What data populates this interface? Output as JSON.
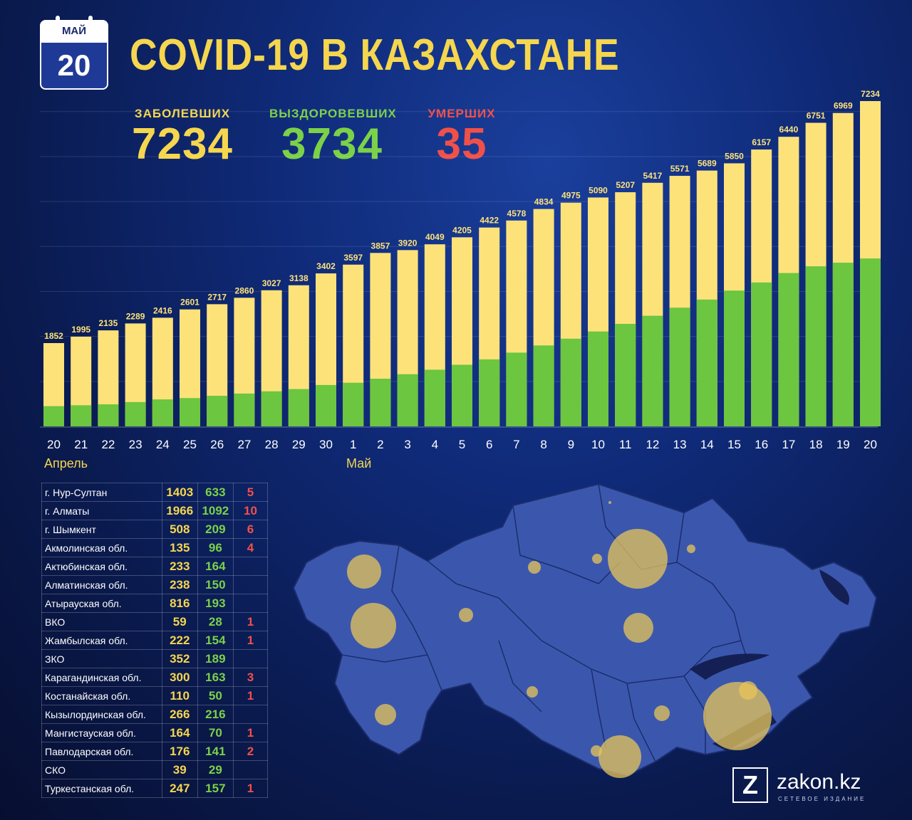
{
  "header": {
    "calendar_month": "МАЙ",
    "calendar_day": "20",
    "title": "COVID-19 В КАЗАХСТАНЕ"
  },
  "totals": {
    "cases_label": "ЗАБОЛЕВШИХ",
    "cases_value": "7234",
    "recovered_label": "ВЫЗДОРОВЕВШИХ",
    "recovered_value": "3734",
    "deaths_label": "УМЕРШИХ",
    "deaths_value": "35"
  },
  "colors": {
    "cases": "#f5d64e",
    "recovered": "#7bd148",
    "deaths": "#f0504a",
    "bar": "#fde27a",
    "bar_green": "#6cc63f"
  },
  "chart_data": {
    "type": "bar",
    "categories": [
      "20",
      "21",
      "22",
      "23",
      "24",
      "25",
      "26",
      "27",
      "28",
      "29",
      "30",
      "1",
      "2",
      "3",
      "4",
      "5",
      "6",
      "7",
      "8",
      "9",
      "10",
      "11",
      "12",
      "13",
      "14",
      "15",
      "16",
      "17",
      "18",
      "19",
      "20"
    ],
    "month_labels": [
      "Апрель",
      "Май"
    ],
    "series": [
      {
        "values": [
          1852,
          1995,
          2135,
          2289,
          2416,
          2601,
          2717,
          2860,
          3027,
          3138,
          3402,
          3597,
          3857,
          3920,
          4049,
          4205,
          4422,
          4578,
          4834,
          4975,
          5090,
          5207,
          5417,
          5571,
          5689,
          5850,
          6157,
          6440,
          6751,
          6969,
          7234
        ]
      },
      {
        "values": [
          450,
          470,
          490,
          540,
          600,
          630,
          680,
          730,
          780,
          830,
          920,
          970,
          1060,
          1160,
          1260,
          1370,
          1490,
          1640,
          1800,
          1950,
          2110,
          2280,
          2460,
          2640,
          2820,
          3020,
          3200,
          3410,
          3560,
          3640,
          3734
        ]
      }
    ],
    "ylim": [
      0,
      7500
    ],
    "grid": true
  },
  "regions": [
    {
      "name": "г. Нур-Султан",
      "cases": "1403",
      "recovered": "633",
      "deaths": "5"
    },
    {
      "name": "г. Алматы",
      "cases": "1966",
      "recovered": "1092",
      "deaths": "10"
    },
    {
      "name": "г. Шымкент",
      "cases": "508",
      "recovered": "209",
      "deaths": "6"
    },
    {
      "name": "Акмолинская обл.",
      "cases": "135",
      "recovered": "96",
      "deaths": "4"
    },
    {
      "name": "Актюбинская обл.",
      "cases": "233",
      "recovered": "164",
      "deaths": ""
    },
    {
      "name": "Алматинская обл.",
      "cases": "238",
      "recovered": "150",
      "deaths": ""
    },
    {
      "name": "Атырауская обл.",
      "cases": "816",
      "recovered": "193",
      "deaths": ""
    },
    {
      "name": "ВКО",
      "cases": "59",
      "recovered": "28",
      "deaths": "1"
    },
    {
      "name": "Жамбылская обл.",
      "cases": "222",
      "recovered": "154",
      "deaths": "1"
    },
    {
      "name": "ЗКО",
      "cases": "352",
      "recovered": "189",
      "deaths": ""
    },
    {
      "name": "Карагандинская обл.",
      "cases": "300",
      "recovered": "163",
      "deaths": "3"
    },
    {
      "name": "Костанайская обл.",
      "cases": "110",
      "recovered": "50",
      "deaths": "1"
    },
    {
      "name": "Кызылординская обл.",
      "cases": "266",
      "recovered": "216",
      "deaths": ""
    },
    {
      "name": "Мангистауская обл.",
      "cases": "164",
      "recovered": "70",
      "deaths": "1"
    },
    {
      "name": "Павлодарская обл.",
      "cases": "176",
      "recovered": "141",
      "deaths": "2"
    },
    {
      "name": "СКО",
      "cases": "39",
      "recovered": "29",
      "deaths": ""
    },
    {
      "name": "Туркестанская обл.",
      "cases": "247",
      "recovered": "157",
      "deaths": "1"
    }
  ],
  "logo": {
    "mark": "Z",
    "name": "zakon.kz",
    "subtitle": "СЕТЕВОЕ ИЗДАНИЕ"
  }
}
